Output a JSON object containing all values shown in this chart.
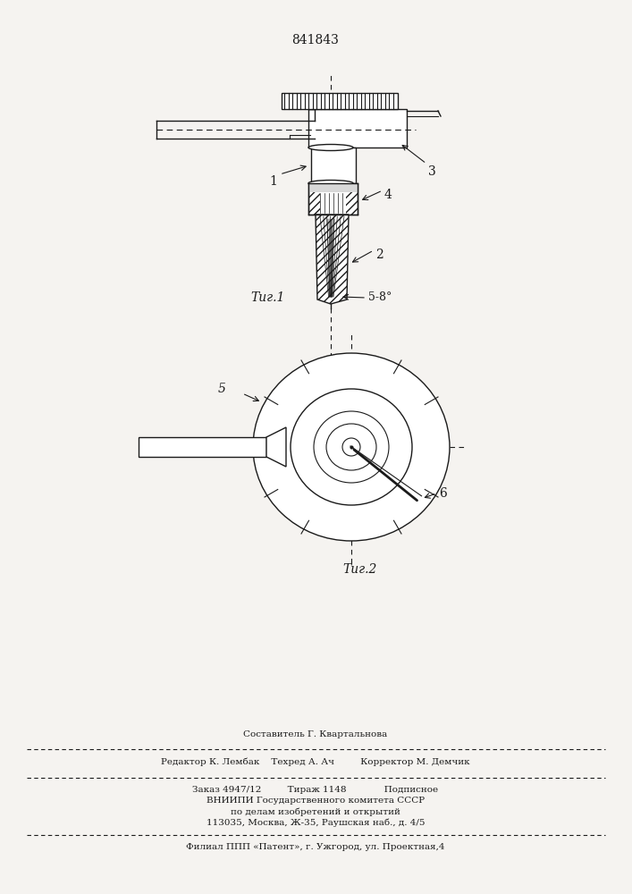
{
  "patent_number": "841843",
  "fig1_label": "Τиг.1",
  "fig2_label": "Τиг.2",
  "angle_label": "5-8°",
  "label1": "1",
  "label2": "2",
  "label3": "3",
  "label4": "4",
  "label5": "5",
  "label6": "6",
  "bg_color": "#f5f3f0",
  "line_color": "#1a1a1a",
  "footer_line1": "Составитель Г. Квартальнова",
  "footer_line2": "Редактор К. Лембак    Техред А. Ач         Корректор М. Демчик",
  "footer_line3": "Заказ 4947/12         Тираж 1148             Подписное",
  "footer_line4": "ВНИИПИ Государственного комитета СССР",
  "footer_line5": "по делам изобретений и открытий",
  "footer_line6": "113035, Москва, Ж-35, Раушская наб., д. 4/5",
  "footer_line7": "Филиал ППП «Патент», г. Ужгород, ул. Проектная,4"
}
